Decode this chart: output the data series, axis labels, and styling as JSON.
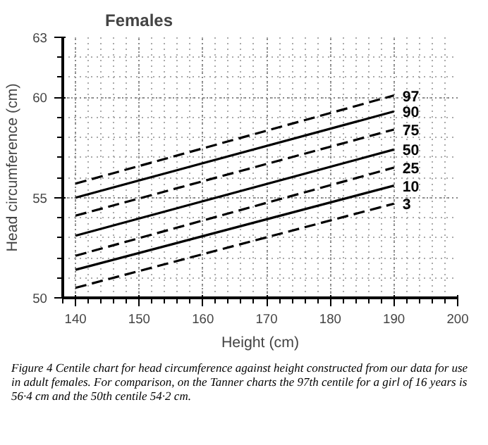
{
  "chart_data": {
    "type": "line",
    "title": "Females",
    "xlabel": "Height (cm)",
    "ylabel": "Head circumference (cm)",
    "x": [
      140,
      190
    ],
    "series": [
      {
        "name": "97",
        "color": "#000000",
        "values": [
          55.7,
          60.1
        ],
        "line_style": "dashed"
      },
      {
        "name": "90",
        "color": "#000000",
        "values": [
          55.0,
          59.3
        ],
        "line_style": "solid"
      },
      {
        "name": "75",
        "color": "#000000",
        "values": [
          54.1,
          58.4
        ],
        "line_style": "dashed"
      },
      {
        "name": "50",
        "color": "#000000",
        "values": [
          53.1,
          57.4
        ],
        "line_style": "solid"
      },
      {
        "name": "25",
        "color": "#000000",
        "values": [
          52.1,
          56.5
        ],
        "line_style": "dashed"
      },
      {
        "name": "10",
        "color": "#000000",
        "values": [
          51.4,
          55.6
        ],
        "line_style": "solid"
      },
      {
        "name": "3",
        "color": "#000000",
        "values": [
          50.5,
          54.7
        ],
        "line_style": "dashed"
      }
    ],
    "xlim": [
      138,
      200
    ],
    "ylim": [
      50,
      63
    ],
    "xticks": [
      140,
      150,
      160,
      170,
      180,
      190,
      200
    ],
    "yticks": [
      50,
      55,
      60,
      63
    ],
    "grid": true,
    "legend": false,
    "marker": "none",
    "annotations": [
      "Figure 4    Centile chart for head circumference against height constructed from our data for use in adult females. For comparison, on the Tanner charts the 97th centile for a girl of 16 years is 56·4 cm and the 50th centile 54·2 cm."
    ]
  }
}
